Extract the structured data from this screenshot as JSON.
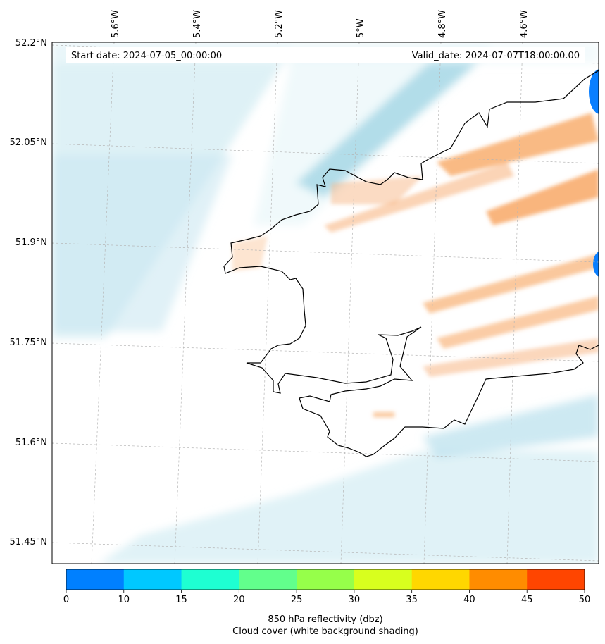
{
  "header": {
    "start_date": "Start date: 2024-07-05_00:00:00",
    "valid_date": "Valid_date: 2024-07-07T18:00:00.00"
  },
  "map": {
    "lon_labels": [
      "5.6°W",
      "5.4°W",
      "5.2°W",
      "5°W",
      "4.8°W",
      "4.6°W"
    ],
    "lat_labels": [
      "52.2°N",
      "52.05°N",
      "51.9°N",
      "51.75°N",
      "51.6°N",
      "51.45°N"
    ],
    "extent": {
      "lon": [
        -5.75,
        -4.48
      ],
      "lat": [
        51.42,
        52.2
      ]
    },
    "coastline_color": "#000000",
    "reflectivity_color": "#0a7fff",
    "warm_band_color": "#f7a35c",
    "cloud_shading_color": "#a8d8e6"
  },
  "colorbar": {
    "ticks": [
      "0",
      "10",
      "15",
      "20",
      "25",
      "30",
      "35",
      "40",
      "45",
      "50"
    ],
    "colors": [
      "#0080ff",
      "#00c8ff",
      "#1effd2",
      "#62ff8c",
      "#96ff4a",
      "#d8ff1e",
      "#ffd700",
      "#ff8c00",
      "#ff4500"
    ],
    "label_line1": "850 hPa reflectivity (dbz)",
    "label_line2": "Cloud cover (white background shading)"
  }
}
